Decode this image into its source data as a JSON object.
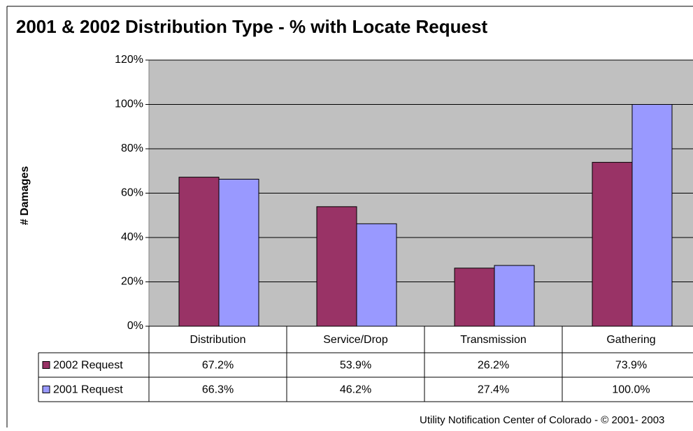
{
  "chart_data": {
    "type": "bar",
    "title": "2001 & 2002 Distribution Type - % with Locate Request",
    "y_label": "# Damages",
    "footer": "Utility Notification Center of Colorado - © 2001- 2003",
    "categories": [
      "Distribution",
      "Service/Drop",
      "Transmission",
      "Gathering"
    ],
    "series": [
      {
        "name": "2002 Request",
        "color": "#993366",
        "values": [
          67.2,
          53.9,
          26.2,
          73.9
        ],
        "value_labels": [
          "67.2%",
          "53.9%",
          "26.2%",
          "73.9%"
        ]
      },
      {
        "name": "2001 Request",
        "color": "#9999ff",
        "values": [
          66.3,
          46.2,
          27.4,
          100.0
        ],
        "value_labels": [
          "66.3%",
          "46.2%",
          "27.4%",
          "100.0%"
        ]
      }
    ],
    "ylim": [
      0,
      120
    ],
    "yticks": [
      {
        "value": 0,
        "label": "0%"
      },
      {
        "value": 20,
        "label": "20%"
      },
      {
        "value": 40,
        "label": "40%"
      },
      {
        "value": 60,
        "label": "60%"
      },
      {
        "value": 80,
        "label": "80%"
      },
      {
        "value": 100,
        "label": "100%"
      },
      {
        "value": 120,
        "label": "120%"
      }
    ],
    "grid": true,
    "plot_background": "#c0c0c0"
  }
}
